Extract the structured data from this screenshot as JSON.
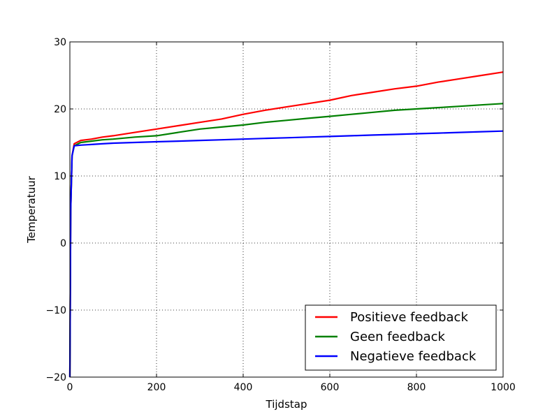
{
  "chart_data": {
    "type": "line",
    "title": "",
    "xlabel": "Tijdstap",
    "ylabel": "Temperatuur",
    "xlim": [
      0,
      1000
    ],
    "ylim": [
      -20,
      30
    ],
    "xticks": [
      "0",
      "200",
      "400",
      "600",
      "800",
      "1000"
    ],
    "yticks": [
      "−20",
      "−10",
      "0",
      "10",
      "20",
      "30"
    ],
    "grid": true,
    "legend_position": "lower-right",
    "series": [
      {
        "name": "Positieve feedback",
        "color": "#ff0000",
        "x": [
          0,
          2,
          5,
          10,
          25,
          50,
          75,
          100,
          150,
          200,
          250,
          300,
          350,
          400,
          450,
          500,
          550,
          600,
          650,
          700,
          750,
          800,
          850,
          900,
          950,
          1000
        ],
        "y": [
          -20,
          5,
          13,
          14.8,
          15.3,
          15.5,
          15.8,
          16,
          16.5,
          17,
          17.5,
          18,
          18.5,
          19.2,
          19.8,
          20.3,
          20.8,
          21.3,
          22,
          22.5,
          23,
          23.4,
          24,
          24.5,
          25,
          25.5
        ]
      },
      {
        "name": "Geen feedback",
        "color": "#008000",
        "x": [
          0,
          2,
          5,
          10,
          25,
          50,
          75,
          100,
          150,
          200,
          250,
          300,
          350,
          400,
          450,
          500,
          550,
          600,
          650,
          700,
          750,
          800,
          850,
          900,
          950,
          1000
        ],
        "y": [
          -20,
          5,
          13,
          14.5,
          15,
          15.2,
          15.4,
          15.5,
          15.8,
          16,
          16.5,
          17,
          17.3,
          17.6,
          18,
          18.3,
          18.6,
          18.9,
          19.2,
          19.5,
          19.8,
          20,
          20.2,
          20.4,
          20.6,
          20.8
        ]
      },
      {
        "name": "Negatieve feedback",
        "color": "#0000ff",
        "x": [
          0,
          2,
          5,
          10,
          25,
          50,
          75,
          100,
          150,
          200,
          250,
          300,
          350,
          400,
          450,
          500,
          550,
          600,
          650,
          700,
          750,
          800,
          850,
          900,
          950,
          1000
        ],
        "y": [
          -20,
          5,
          13,
          14.5,
          14.6,
          14.7,
          14.8,
          14.9,
          15,
          15.1,
          15.2,
          15.3,
          15.4,
          15.5,
          15.6,
          15.7,
          15.8,
          15.9,
          16,
          16.1,
          16.2,
          16.3,
          16.4,
          16.5,
          16.6,
          16.7
        ]
      }
    ]
  }
}
